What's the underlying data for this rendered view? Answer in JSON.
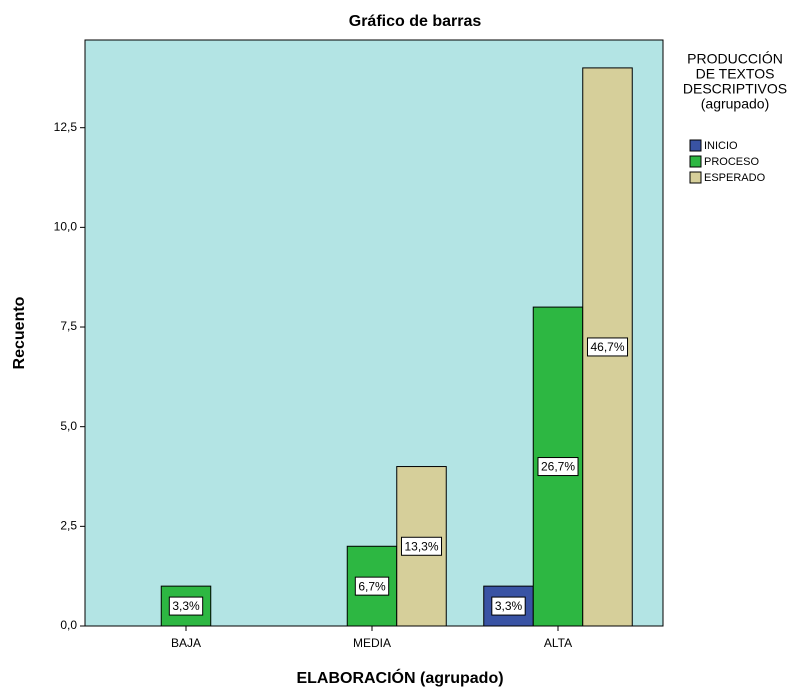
{
  "chart_data": {
    "type": "bar",
    "title": "Gráfico de barras",
    "x_label": "ELABORACIÓN (agrupado)",
    "y_label": "Recuento",
    "categories": [
      "BAJA",
      "MEDIA",
      "ALTA"
    ],
    "series": [
      {
        "name": "INICIO",
        "color": "#3953a4",
        "values": [
          null,
          null,
          1
        ],
        "value_labels": [
          null,
          null,
          "3,3%"
        ]
      },
      {
        "name": "PROCESO",
        "color": "#2db742",
        "values": [
          1,
          2,
          8
        ],
        "value_labels": [
          "3,3%",
          "6,7%",
          "26,7%"
        ]
      },
      {
        "name": "ESPERADO",
        "color": "#d6cf9a",
        "values": [
          null,
          4,
          14
        ],
        "value_labels": [
          null,
          "13,3%",
          "46,7%"
        ]
      }
    ],
    "legend_title": [
      "PRODUCCIÓN",
      "DE TEXTOS",
      "DESCRIPTIVOS",
      "(agrupado)"
    ],
    "legend_position": "right",
    "ylim": [
      0,
      14.7
    ],
    "yticks": [
      {
        "value": 0,
        "label": "0,0"
      },
      {
        "value": 2.5,
        "label": "2,5"
      },
      {
        "value": 5,
        "label": "5,0"
      },
      {
        "value": 7.5,
        "label": "7,5"
      },
      {
        "value": 10,
        "label": "10,0"
      },
      {
        "value": 12.5,
        "label": "12,5"
      }
    ],
    "background": "#b3e4e4"
  }
}
